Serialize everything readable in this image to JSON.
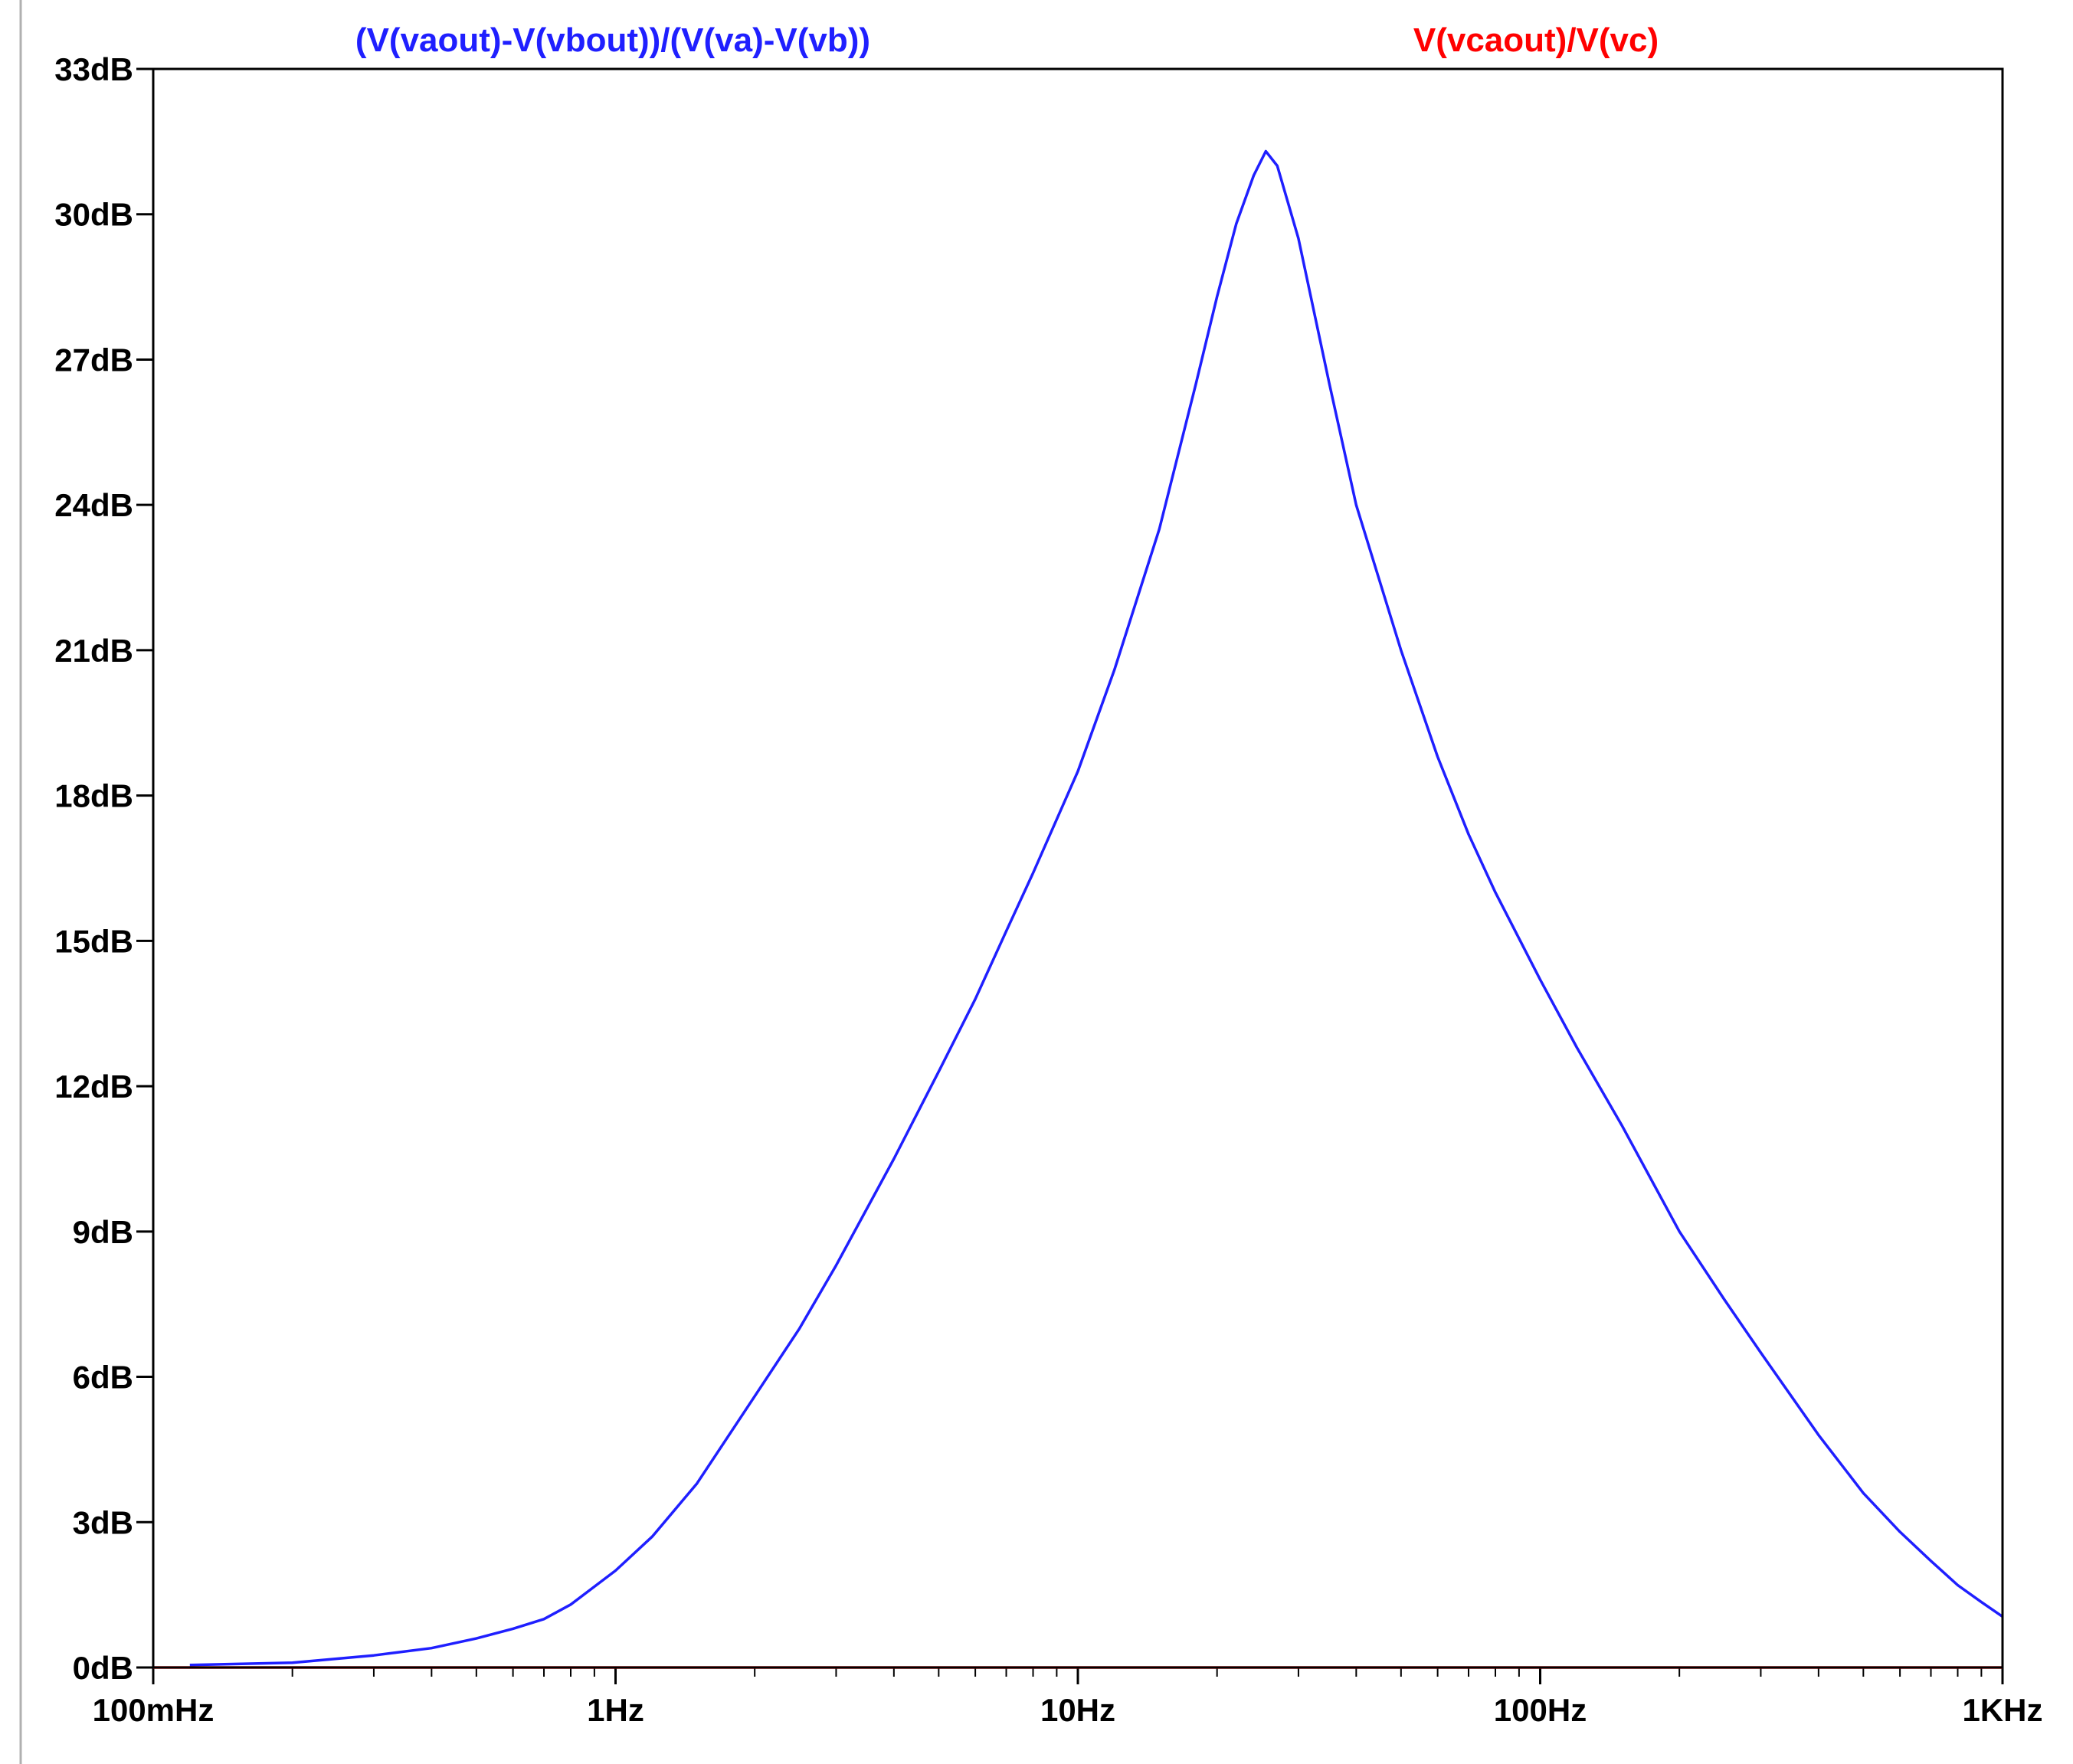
{
  "chart_data": {
    "type": "line",
    "title": "",
    "xlabel": "",
    "ylabel": "",
    "x_scale": "log",
    "xlim_hz": [
      0.1,
      1000
    ],
    "ylim_db": [
      0,
      33
    ],
    "x_tick_values_hz": [
      0.1,
      1,
      10,
      100,
      1000
    ],
    "x_tick_labels": [
      "100mHz",
      "1Hz",
      "10Hz",
      "100Hz",
      "1KHz"
    ],
    "y_tick_values_db": [
      0,
      3,
      6,
      9,
      12,
      15,
      18,
      21,
      24,
      27,
      30,
      33
    ],
    "y_tick_labels": [
      "0dB",
      "3dB",
      "6dB",
      "9dB",
      "12dB",
      "15dB",
      "18dB",
      "21dB",
      "24dB",
      "27dB",
      "30dB",
      "33dB"
    ],
    "grid": false,
    "series": [
      {
        "name": "(V(vaout)-V(vbout))/(V(va)-V(vb))",
        "color": "#1f1fff",
        "x_hz": [
          0.12,
          0.2,
          0.3,
          0.4,
          0.5,
          0.6,
          0.7,
          0.8,
          1.0,
          1.2,
          1.5,
          2.0,
          2.5,
          3.0,
          4.0,
          5.0,
          6.0,
          7.0,
          8.0,
          10.0,
          12.0,
          15.0,
          18.0,
          20.0,
          22.0,
          24.0,
          25.5,
          27.0,
          30.0,
          35.0,
          40.0,
          50.0,
          60.0,
          70.0,
          80.0,
          100.0,
          120.0,
          150.0,
          200.0,
          250.0,
          300.0,
          400.0,
          500.0,
          600.0,
          700.0,
          800.0,
          900.0,
          1000.0
        ],
        "y_db": [
          0.05,
          0.1,
          0.25,
          0.4,
          0.6,
          0.8,
          1.0,
          1.3,
          2.0,
          2.7,
          3.8,
          5.6,
          7.0,
          8.3,
          10.5,
          12.3,
          13.8,
          15.2,
          16.4,
          18.5,
          20.6,
          23.5,
          26.5,
          28.3,
          29.8,
          30.8,
          31.3,
          31.0,
          29.5,
          26.5,
          24.0,
          21.0,
          18.8,
          17.2,
          16.0,
          14.2,
          12.8,
          11.2,
          9.0,
          7.6,
          6.5,
          4.8,
          3.6,
          2.8,
          2.2,
          1.7,
          1.35,
          1.05
        ]
      },
      {
        "name": "V(vcaout)/V(vc)",
        "color": "#ff0000",
        "x_hz": [
          0.1,
          1000
        ],
        "y_db": [
          0,
          0
        ]
      }
    ]
  }
}
